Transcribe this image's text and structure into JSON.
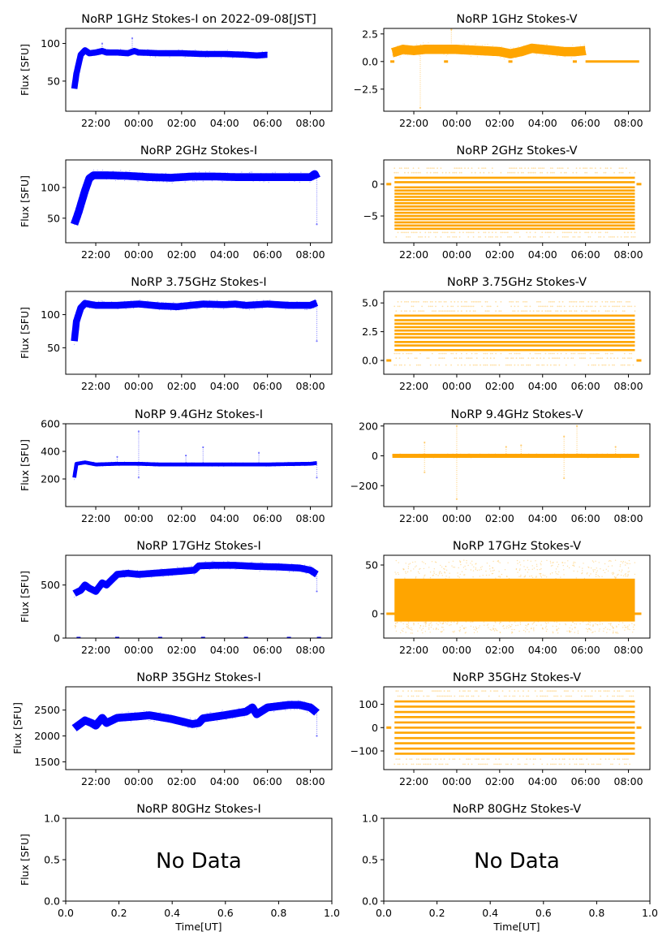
{
  "figure": {
    "title_suffix": "on 2022-09-08[JST]"
  },
  "chart_data": [
    {
      "id": "1ghz-i",
      "type": "scatter",
      "title": "NoRP 1GHz Stokes-I on 2022-09-08[JST]",
      "ylabel": "Flux [SFU]",
      "xlabel": "",
      "color": "#0000ff",
      "xlim_hours": [
        20.6,
        33.0
      ],
      "ylim": [
        10,
        120
      ],
      "yticks": [
        50,
        100
      ],
      "xticks": [
        "22:00",
        "00:00",
        "02:00",
        "04:00",
        "06:00",
        "08:00"
      ],
      "series": [
        {
          "name": "Stokes-I",
          "x_hours": [
            21.0,
            21.1,
            21.3,
            21.5,
            21.7,
            22.0,
            22.3,
            22.5,
            23.0,
            23.5,
            23.8,
            24.0,
            25.0,
            26.0,
            27.0,
            28.0,
            29.0,
            29.5,
            30.0
          ],
          "y": [
            40,
            60,
            85,
            91,
            87,
            88,
            90,
            88,
            88,
            87,
            90,
            88,
            87,
            87,
            86,
            86,
            85,
            84,
            85
          ],
          "band": 3,
          "spikes": [
            {
              "x": 22.3,
              "y": 100
            },
            {
              "x": 23.7,
              "y": 107
            }
          ]
        }
      ]
    },
    {
      "id": "1ghz-v",
      "type": "scatter",
      "title": "NoRP 1GHz Stokes-V",
      "ylabel": "",
      "xlabel": "",
      "color": "#ffa500",
      "xlim_hours": [
        20.6,
        33.0
      ],
      "ylim": [
        -4.5,
        3.0
      ],
      "yticks": [
        -2.5,
        0.0,
        2.5
      ],
      "ytick_labels": [
        "−2.5",
        "0.0",
        "2.5"
      ],
      "xticks": [
        "22:00",
        "00:00",
        "02:00",
        "04:00",
        "06:00",
        "08:00"
      ],
      "series": [
        {
          "name": "Stokes-V",
          "x_hours": [
            21.0,
            21.5,
            22.0,
            22.5,
            23.0,
            24.0,
            25.0,
            26.0,
            26.5,
            27.0,
            27.5,
            28.0,
            29.0,
            29.5,
            30.0
          ],
          "y": [
            0.8,
            1.1,
            1.0,
            1.1,
            1.1,
            1.1,
            1.0,
            0.9,
            0.7,
            0.9,
            1.2,
            1.1,
            0.9,
            0.9,
            1.0
          ],
          "band": 0.35,
          "spikes": [
            {
              "x": 22.3,
              "y": -4.2
            },
            {
              "x": 23.75,
              "y": 2.9
            }
          ],
          "zero_line": {
            "from": 30.0,
            "to": 32.5
          },
          "zero_marks": [
            21.0,
            23.5,
            26.5,
            29.5
          ]
        }
      ]
    },
    {
      "id": "2ghz-i",
      "type": "scatter",
      "title": "NoRP 2GHz Stokes-I",
      "ylabel": "Flux [SFU]",
      "xlabel": "",
      "color": "#0000ff",
      "xlim_hours": [
        20.6,
        33.0
      ],
      "ylim": [
        10,
        145
      ],
      "yticks": [
        50,
        100
      ],
      "xticks": [
        "22:00",
        "00:00",
        "02:00",
        "04:00",
        "06:00",
        "08:00"
      ],
      "series": [
        {
          "name": "Stokes-I",
          "x_hours": [
            21.0,
            21.2,
            21.5,
            21.7,
            21.9,
            22.5,
            23.5,
            24.5,
            25.5,
            26.5,
            27.5,
            28.5,
            29.5,
            30.5,
            31.5,
            32.0,
            32.2,
            32.3
          ],
          "y": [
            40,
            60,
            95,
            115,
            120,
            120,
            119,
            117,
            116,
            118,
            118,
            117,
            117,
            117,
            117,
            117,
            122,
            115
          ],
          "band": 5,
          "spikes": [
            {
              "x": 32.3,
              "y": 40
            }
          ]
        }
      ]
    },
    {
      "id": "2ghz-v",
      "type": "scatter",
      "title": "NoRP 2GHz Stokes-V",
      "ylabel": "",
      "xlabel": "",
      "color": "#ffa500",
      "xlim_hours": [
        20.6,
        33.0
      ],
      "ylim": [
        -9.2,
        3.8
      ],
      "yticks": [
        -5,
        0
      ],
      "ytick_labels": [
        "−5",
        "0"
      ],
      "xticks": [
        "22:00",
        "00:00",
        "02:00",
        "04:00",
        "06:00",
        "08:00"
      ],
      "series": [
        {
          "name": "Stokes-V",
          "levels": [
            -7.0,
            -6.5,
            -6.0,
            -5.5,
            -5.0,
            -4.5,
            -4.0,
            -3.5,
            -3.0,
            -2.5,
            -2.0,
            -1.5,
            -1.0,
            -0.5,
            0.3,
            1.0
          ],
          "x_range": [
            21.1,
            32.3
          ],
          "sparse_levels": [
            1.8,
            2.5,
            -7.6,
            -8.3
          ]
        }
      ]
    },
    {
      "id": "3.75ghz-i",
      "type": "scatter",
      "title": "NoRP 3.75GHz Stokes-I",
      "ylabel": "Flux [SFU]",
      "xlabel": "",
      "color": "#0000ff",
      "xlim_hours": [
        20.6,
        33.0
      ],
      "ylim": [
        10,
        135
      ],
      "yticks": [
        50,
        100
      ],
      "xticks": [
        "22:00",
        "00:00",
        "02:00",
        "04:00",
        "06:00",
        "08:00"
      ],
      "series": [
        {
          "name": "Stokes-I",
          "x_hours": [
            21.0,
            21.1,
            21.3,
            21.5,
            22.0,
            23.0,
            24.0,
            25.0,
            25.8,
            27.0,
            28.0,
            28.5,
            29.0,
            30.0,
            31.0,
            32.0,
            32.3
          ],
          "y": [
            60,
            90,
            110,
            117,
            114,
            114,
            116,
            113,
            112,
            116,
            115,
            116,
            114,
            116,
            114,
            114,
            118
          ],
          "band": 4,
          "spikes": [
            {
              "x": 32.3,
              "y": 60
            }
          ]
        }
      ]
    },
    {
      "id": "3.75ghz-v",
      "type": "scatter",
      "title": "NoRP 3.75GHz Stokes-V",
      "ylabel": "",
      "xlabel": "",
      "color": "#ffa500",
      "xlim_hours": [
        20.6,
        33.0
      ],
      "ylim": [
        -1.2,
        6.0
      ],
      "yticks": [
        0.0,
        2.5,
        5.0
      ],
      "ytick_labels": [
        "0.0",
        "2.5",
        "5.0"
      ],
      "xticks": [
        "22:00",
        "00:00",
        "02:00",
        "04:00",
        "06:00",
        "08:00"
      ],
      "series": [
        {
          "name": "Stokes-V",
          "levels": [
            0.9,
            1.3,
            1.6,
            2.0,
            2.3,
            2.6,
            2.9,
            3.2,
            3.5,
            3.9
          ],
          "x_range": [
            21.1,
            32.3
          ],
          "sparse_levels": [
            4.3,
            4.7,
            5.1,
            0.6,
            0.2,
            -0.4
          ]
        }
      ]
    },
    {
      "id": "9.4ghz-i",
      "type": "scatter",
      "title": "NoRP 9.4GHz Stokes-I",
      "ylabel": "Flux [SFU]",
      "xlabel": "",
      "color": "#0000ff",
      "xlim_hours": [
        20.6,
        33.0
      ],
      "ylim": [
        0,
        600
      ],
      "yticks": [
        200,
        400,
        600
      ],
      "xticks": [
        "22:00",
        "00:00",
        "02:00",
        "04:00",
        "06:00",
        "08:00"
      ],
      "series": [
        {
          "name": "Stokes-I",
          "x_hours": [
            21.0,
            21.1,
            21.5,
            22.0,
            23.0,
            24.0,
            25.0,
            26.0,
            27.0,
            28.0,
            29.0,
            30.0,
            31.0,
            32.0,
            32.3
          ],
          "y": [
            210,
            310,
            320,
            305,
            310,
            310,
            305,
            305,
            305,
            305,
            305,
            305,
            308,
            310,
            315
          ],
          "band": 8,
          "spikes": [
            {
              "x": 24.0,
              "y": 545
            },
            {
              "x": 24.0,
              "y": 210
            },
            {
              "x": 27.0,
              "y": 430
            },
            {
              "x": 26.2,
              "y": 370
            },
            {
              "x": 29.6,
              "y": 390
            },
            {
              "x": 23.0,
              "y": 360
            },
            {
              "x": 32.3,
              "y": 210
            }
          ]
        }
      ]
    },
    {
      "id": "9.4ghz-v",
      "type": "scatter",
      "title": "NoRP 9.4GHz Stokes-V",
      "ylabel": "",
      "xlabel": "",
      "color": "#ffa500",
      "xlim_hours": [
        20.6,
        33.0
      ],
      "ylim": [
        -340,
        215
      ],
      "yticks": [
        -200,
        0,
        200
      ],
      "ytick_labels": [
        "−200",
        "0",
        "200"
      ],
      "xticks": [
        "22:00",
        "00:00",
        "02:00",
        "04:00",
        "06:00",
        "08:00"
      ],
      "series": [
        {
          "name": "Stokes-V",
          "x_hours": [
            21.0,
            32.5
          ],
          "y": [
            0,
            0
          ],
          "band": 8,
          "spikes": [
            {
              "x": 24.0,
              "y": 200
            },
            {
              "x": 24.0,
              "y": -290
            },
            {
              "x": 22.5,
              "y": 90
            },
            {
              "x": 22.5,
              "y": -110
            },
            {
              "x": 29.0,
              "y": 130
            },
            {
              "x": 29.0,
              "y": -150
            },
            {
              "x": 29.6,
              "y": 200
            },
            {
              "x": 27.0,
              "y": 70
            },
            {
              "x": 26.3,
              "y": 60
            },
            {
              "x": 31.4,
              "y": 60
            }
          ]
        }
      ]
    },
    {
      "id": "17ghz-i",
      "type": "scatter",
      "title": "NoRP 17GHz Stokes-I",
      "ylabel": "Flux [SFU]",
      "xlabel": "",
      "color": "#0000ff",
      "xlim_hours": [
        20.6,
        33.0
      ],
      "ylim": [
        0,
        780
      ],
      "yticks": [
        0,
        500
      ],
      "xticks": [
        "22:00",
        "00:00",
        "02:00",
        "04:00",
        "06:00",
        "08:00"
      ],
      "series": [
        {
          "name": "Stokes-I",
          "x_hours": [
            21.0,
            21.3,
            21.5,
            21.7,
            22.0,
            22.3,
            22.5,
            23.0,
            23.5,
            24.0,
            25.0,
            26.0,
            26.6,
            26.8,
            27.5,
            28.5,
            29.5,
            30.5,
            31.5,
            32.0,
            32.3
          ],
          "y": [
            420,
            450,
            500,
            470,
            440,
            520,
            500,
            600,
            610,
            600,
            615,
            630,
            640,
            680,
            685,
            685,
            675,
            670,
            660,
            640,
            600
          ],
          "band": 25,
          "spikes": [
            {
              "x": 32.3,
              "y": 440
            }
          ],
          "zero_marks": [
            21.2,
            23.0,
            25.0,
            27.0,
            29.0,
            31.0,
            32.4
          ]
        }
      ]
    },
    {
      "id": "17ghz-v",
      "type": "scatter",
      "title": "NoRP 17GHz Stokes-V",
      "ylabel": "",
      "xlabel": "",
      "color": "#ffa500",
      "xlim_hours": [
        20.6,
        33.0
      ],
      "ylim": [
        -25,
        60
      ],
      "yticks": [
        0,
        50
      ],
      "ytick_labels": [
        "0",
        "50"
      ],
      "xticks": [
        "22:00",
        "00:00",
        "02:00",
        "04:00",
        "06:00",
        "08:00"
      ],
      "series": [
        {
          "name": "Stokes-V",
          "x_range": [
            21.1,
            32.3
          ],
          "fill_low": -8,
          "fill_high": 36,
          "scatter_low": -20,
          "scatter_high": 55
        }
      ]
    },
    {
      "id": "35ghz-i",
      "type": "scatter",
      "title": "NoRP 35GHz Stokes-I",
      "ylabel": "Flux [SFU]",
      "xlabel": "",
      "color": "#0000ff",
      "xlim_hours": [
        20.6,
        33.0
      ],
      "ylim": [
        1350,
        2950
      ],
      "yticks": [
        1500,
        2000,
        2500
      ],
      "xticks": [
        "22:00",
        "00:00",
        "02:00",
        "04:00",
        "06:00",
        "08:00"
      ],
      "series": [
        {
          "name": "Stokes-I",
          "x_hours": [
            21.0,
            21.5,
            21.8,
            22.0,
            22.3,
            22.5,
            23.0,
            24.0,
            24.5,
            25.5,
            26.5,
            26.8,
            27.0,
            28.0,
            29.0,
            29.3,
            29.5,
            30.0,
            31.0,
            31.5,
            32.0,
            32.3
          ],
          "y": [
            2150,
            2300,
            2250,
            2200,
            2350,
            2250,
            2350,
            2380,
            2400,
            2330,
            2230,
            2250,
            2340,
            2400,
            2470,
            2550,
            2420,
            2550,
            2600,
            2600,
            2550,
            2450
          ],
          "band": 60,
          "spikes": [
            {
              "x": 32.3,
              "y": 2000
            }
          ]
        }
      ]
    },
    {
      "id": "35ghz-v",
      "type": "scatter",
      "title": "NoRP 35GHz Stokes-V",
      "ylabel": "",
      "xlabel": "",
      "color": "#ffa500",
      "xlim_hours": [
        20.6,
        33.0
      ],
      "ylim": [
        -180,
        175
      ],
      "yticks": [
        -100,
        0,
        100
      ],
      "ytick_labels": [
        "−100",
        "0",
        "100"
      ],
      "xticks": [
        "22:00",
        "00:00",
        "02:00",
        "04:00",
        "06:00",
        "08:00"
      ],
      "series": [
        {
          "name": "Stokes-V",
          "levels": [
            -112,
            -90,
            -67,
            -45,
            -22,
            0,
            22,
            45,
            67,
            90,
            112
          ],
          "x_range": [
            21.1,
            32.3
          ],
          "sparse_levels": [
            135,
            -135,
            157,
            -157
          ]
        }
      ]
    },
    {
      "id": "80ghz-i",
      "type": "scatter",
      "title": "NoRP 80GHz Stokes-I",
      "ylabel": "Flux [SFU]",
      "xlabel": "Time[UT]",
      "color": "#0000ff",
      "xlim": [
        0,
        1
      ],
      "ylim": [
        0,
        1
      ],
      "yticks": [
        0.0,
        0.5,
        1.0
      ],
      "ytick_labels": [
        "0.0",
        "0.5",
        "1.0"
      ],
      "xticks_numeric": [
        "0.0",
        "0.2",
        "0.4",
        "0.6",
        "0.8",
        "1.0"
      ],
      "annotation": "No Data",
      "series": []
    },
    {
      "id": "80ghz-v",
      "type": "scatter",
      "title": "NoRP 80GHz Stokes-V",
      "ylabel": "",
      "xlabel": "Time[UT]",
      "color": "#ffa500",
      "xlim": [
        0,
        1
      ],
      "ylim": [
        0,
        1
      ],
      "yticks": [
        0.0,
        0.5,
        1.0
      ],
      "ytick_labels": [
        "0.0",
        "0.5",
        "1.0"
      ],
      "xticks_numeric": [
        "0.0",
        "0.2",
        "0.4",
        "0.6",
        "0.8",
        "1.0"
      ],
      "annotation": "No Data",
      "series": []
    }
  ]
}
